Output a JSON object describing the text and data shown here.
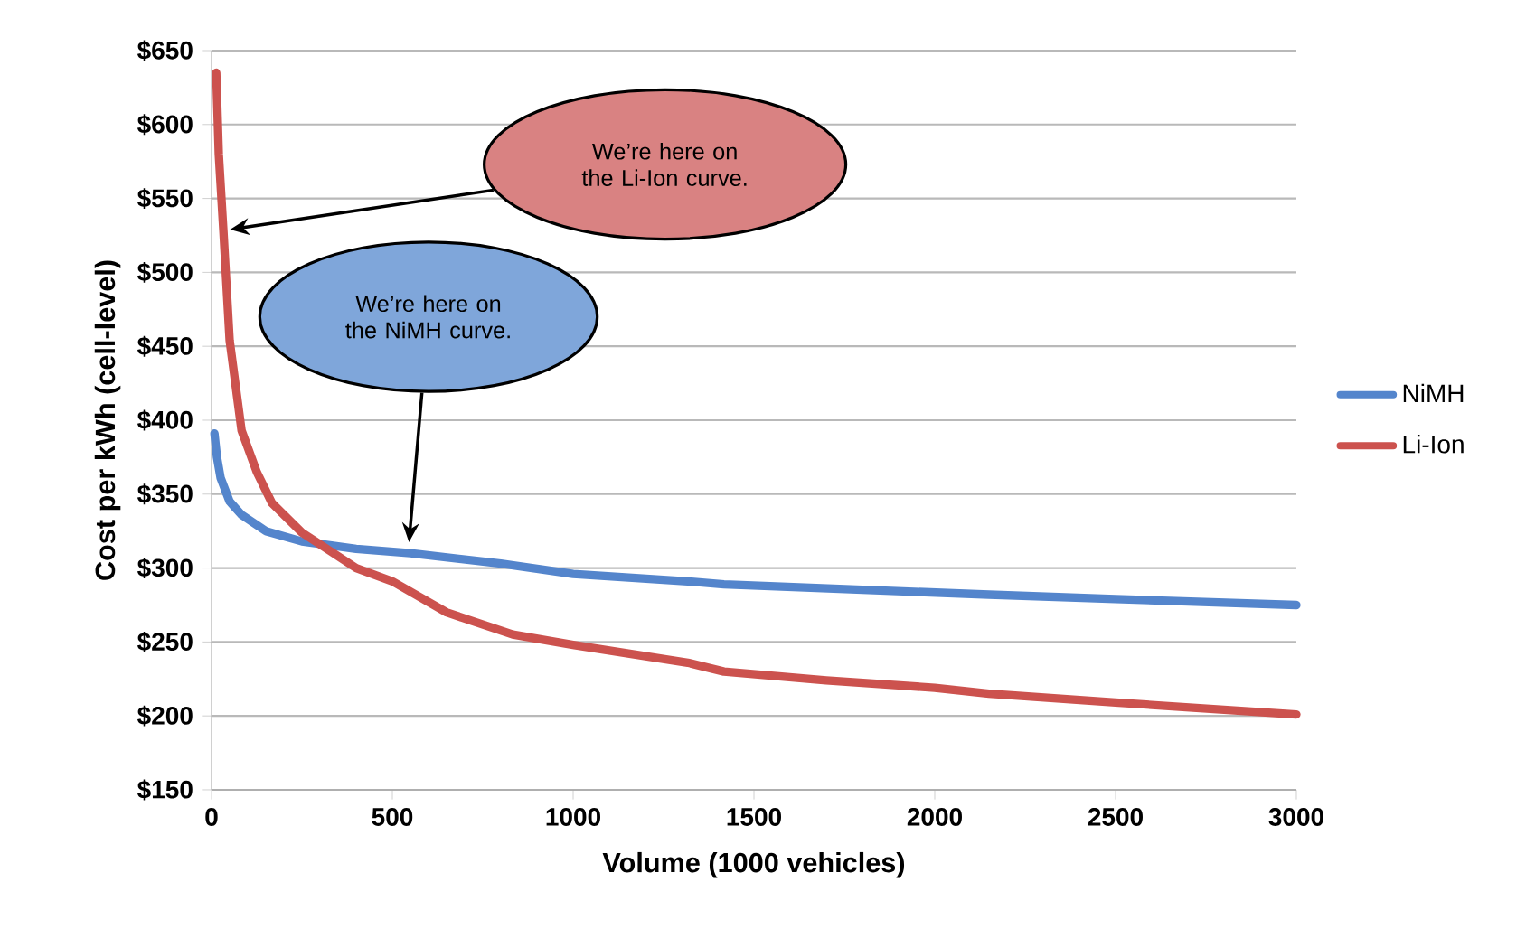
{
  "chart_data": {
    "type": "line",
    "xlabel": "Volume (1000 vehicles)",
    "ylabel": "Cost per kWh (cell-level)",
    "series": [
      {
        "name": "NiMH",
        "color": "#5485cc",
        "x": [
          8,
          15,
          25,
          50,
          83,
          150,
          250,
          400,
          550,
          800,
          1000,
          1317,
          1417,
          2150,
          2500,
          3000
        ],
        "values": [
          391,
          375,
          361,
          345,
          336,
          325,
          318,
          313,
          310,
          303,
          296,
          291,
          289,
          282,
          279,
          275
        ]
      },
      {
        "name": "Li-Ion",
        "color": "#cc524e",
        "x": [
          13,
          20,
          33,
          50,
          83,
          125,
          167,
          250,
          300,
          400,
          500,
          650,
          833,
          1000,
          1317,
          1417,
          1700,
          2000,
          2150,
          2500,
          3000
        ],
        "values": [
          635,
          580,
          527,
          454,
          393,
          365,
          344,
          324,
          316,
          300,
          291,
          270,
          255,
          248,
          236,
          230,
          224,
          219,
          215,
          209,
          201
        ]
      }
    ],
    "xlim": [
      0,
      3000
    ],
    "xticks": [
      0,
      500,
      1000,
      1500,
      2000,
      2500,
      3000
    ],
    "ylim": [
      150,
      650
    ],
    "yticks": [
      {
        "value": 150,
        "label": "$150"
      },
      {
        "value": 200,
        "label": "$200"
      },
      {
        "value": 250,
        "label": "$250"
      },
      {
        "value": 300,
        "label": "$300"
      },
      {
        "value": 350,
        "label": "$350"
      },
      {
        "value": 400,
        "label": "$400"
      },
      {
        "value": 450,
        "label": "$450"
      },
      {
        "value": 500,
        "label": "$500"
      },
      {
        "value": 550,
        "label": "$550"
      },
      {
        "value": 600,
        "label": "$600"
      },
      {
        "value": 650,
        "label": "$650"
      }
    ],
    "annotations": [
      "We’re here on the Li-Ion curve.",
      "We’re here on the NiMH curve."
    ],
    "grid": "y",
    "legend": "right",
    "marker": "none",
    "line_style": "solid"
  }
}
